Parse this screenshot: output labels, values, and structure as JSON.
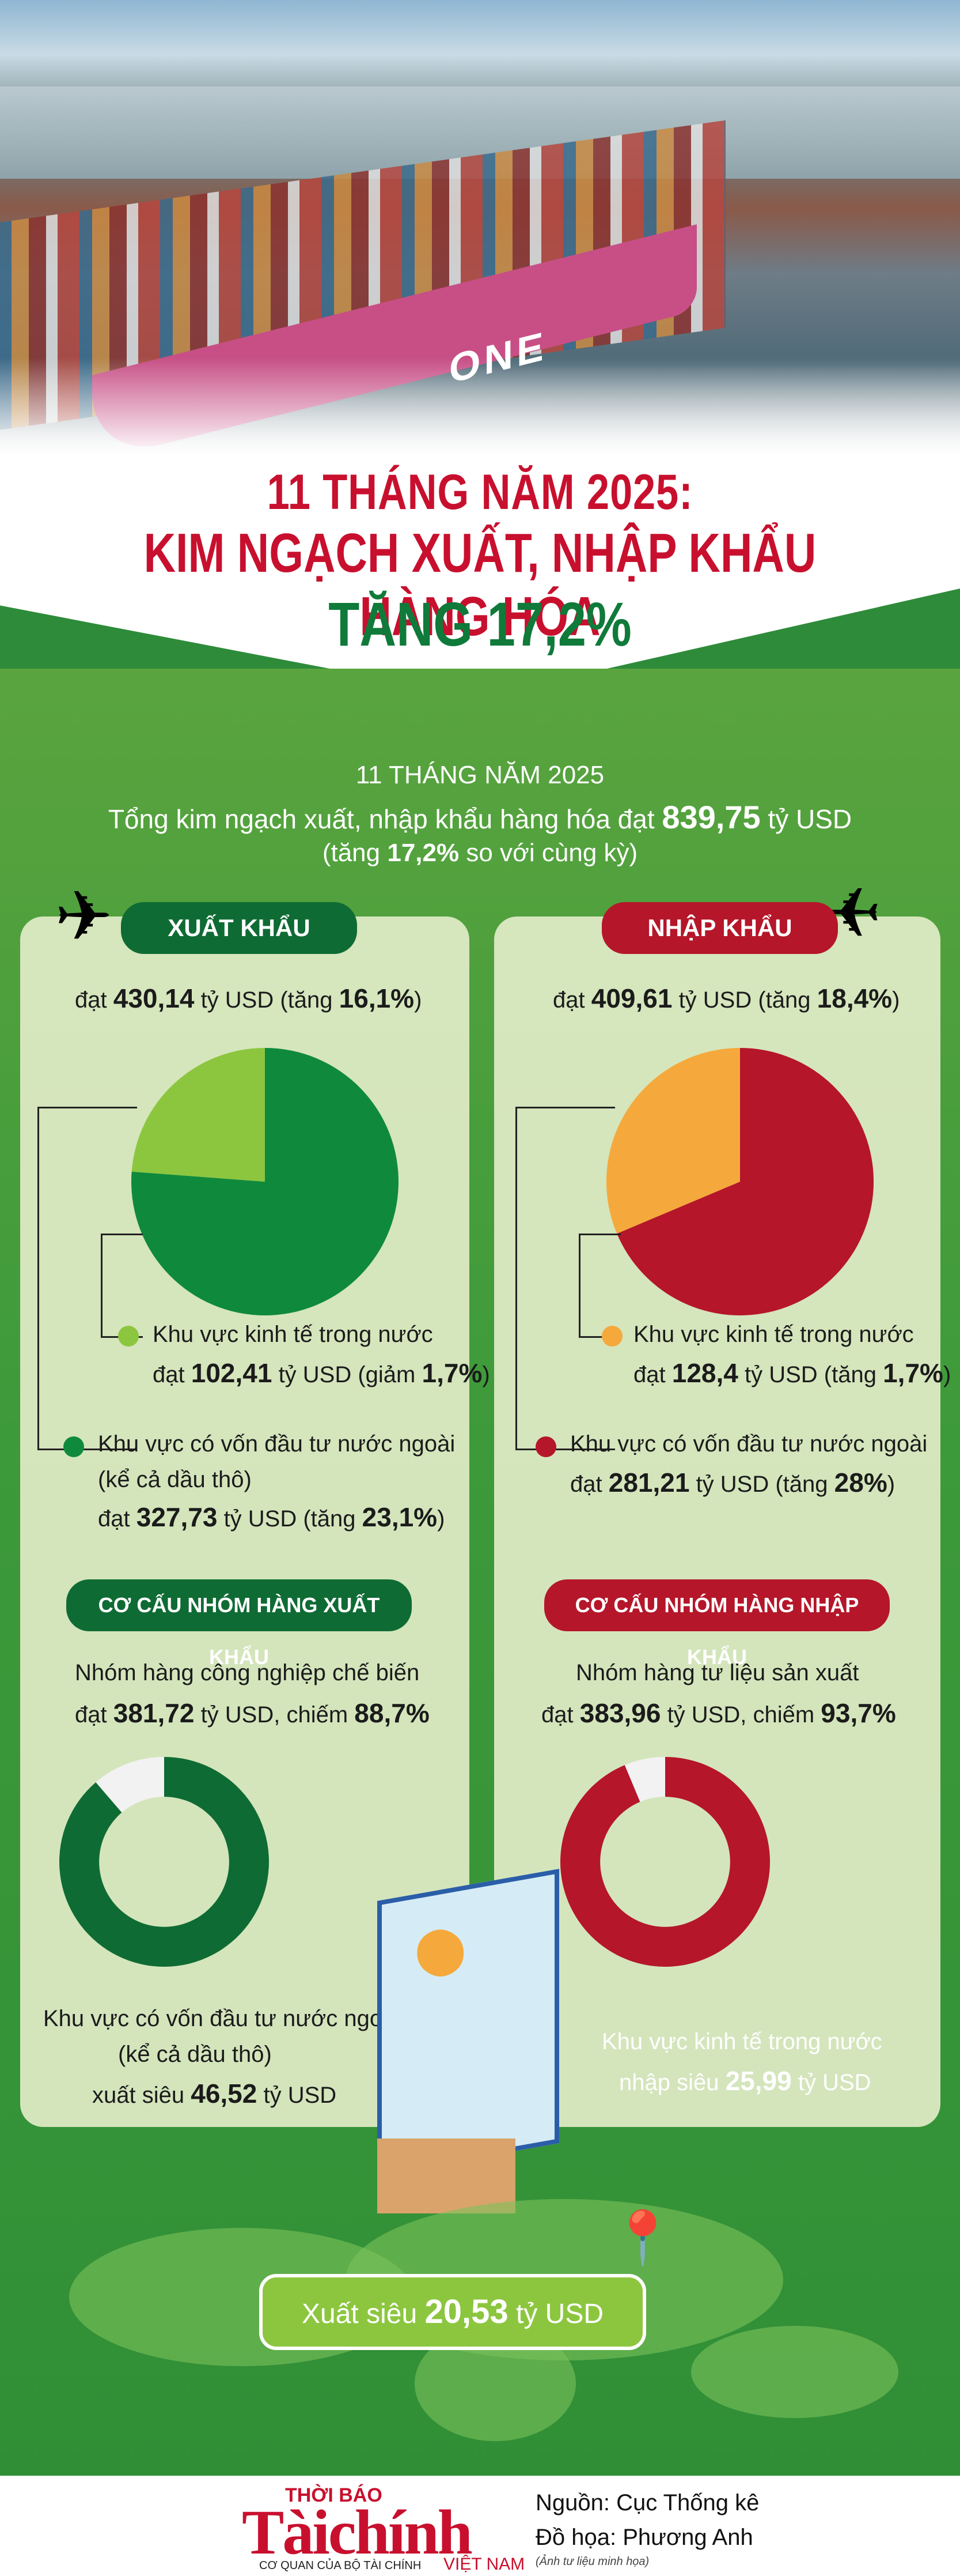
{
  "title": {
    "line1": "11 THÁNG NĂM 2025:",
    "line2": "KIM NGẠCH XUẤT, NHẬP KHẨU HÀNG HÓA",
    "line3": "TĂNG 17,2%"
  },
  "summary": {
    "period": "11 THÁNG NĂM 2025",
    "total_prefix": "Tổng kim ngạch xuất, nhập khẩu hàng hóa đạt",
    "total_value": "839,75",
    "total_unit": "tỷ USD",
    "growth_prefix": "(tăng",
    "growth_value": "17,2%",
    "growth_suffix": "so với cùng kỳ)"
  },
  "export": {
    "label": "XUẤT KHẨU",
    "value_prefix": "đạt",
    "value": "430,14",
    "value_mid": "tỷ USD (tăng",
    "growth": "16,1%",
    "value_suffix": ")",
    "domestic_label": "Khu vực kinh tế trong nước",
    "domestic_prefix": "đạt",
    "domestic_value": "102,41",
    "domestic_mid": "tỷ USD (giảm",
    "domestic_change": "1,7%",
    "domestic_suffix": ")",
    "fdi_label": "Khu vực có vốn đầu tư nước ngoài",
    "fdi_note": "(kể cả dầu thô)",
    "fdi_prefix": "đạt",
    "fdi_value": "327,73",
    "fdi_mid": "tỷ USD (tăng",
    "fdi_change": "23,1%",
    "fdi_suffix": ")",
    "structure_label": "CƠ CẤU NHÓM HÀNG XUẤT KHẨU",
    "group_label": "Nhóm hàng công nghiệp chế biến",
    "group_prefix": "đạt",
    "group_value": "381,72",
    "group_mid": "tỷ USD, chiếm",
    "group_share": "88,7%",
    "surplus_line1": "Khu vực có vốn đầu tư nước ngoài",
    "surplus_line2": "(kể cả dầu thô)",
    "surplus_prefix": "xuất siêu",
    "surplus_value": "46,52",
    "surplus_unit": "tỷ USD"
  },
  "import": {
    "label": "NHẬP KHẨU",
    "value_prefix": "đạt",
    "value": "409,61",
    "value_mid": "tỷ USD (tăng",
    "growth": "18,4%",
    "value_suffix": ")",
    "domestic_label": "Khu vực kinh tế trong nước",
    "domestic_prefix": "đạt",
    "domestic_value": "128,4",
    "domestic_mid": "tỷ USD (tăng",
    "domestic_change": "1,7%",
    "domestic_suffix": ")",
    "fdi_label": "Khu vực có vốn đầu tư nước ngoài",
    "fdi_prefix": "đạt",
    "fdi_value": "281,21",
    "fdi_mid": "tỷ USD (tăng",
    "fdi_change": "28%",
    "fdi_suffix": ")",
    "structure_label": "CƠ CẤU NHÓM HÀNG NHẬP KHẨU",
    "group_label": "Nhóm hàng tư liệu sản xuất",
    "group_prefix": "đạt",
    "group_value": "383,96",
    "group_mid": "tỷ USD, chiếm",
    "group_share": "93,7%",
    "deficit_line1": "Khu vực kinh tế trong nước",
    "deficit_prefix": "nhập siêu",
    "deficit_value": "25,99",
    "deficit_unit": "tỷ USD"
  },
  "balance": {
    "prefix": "Xuất siêu",
    "value": "20,53",
    "unit": "tỷ USD"
  },
  "footer": {
    "logo_top": "THỜI BÁO",
    "logo_main": "Tàichính",
    "logo_sub": "CƠ QUAN CỦA BỘ TÀI CHÍNH",
    "logo_country": "VIỆT NAM",
    "source": "Nguồn: Cục Thống kê",
    "graphics": "Đồ họa: Phương Anh",
    "note": "(Ảnh tư liệu minh họa)"
  },
  "chart_data": [
    {
      "type": "pie",
      "title": "",
      "categories": [
        "Khu vực có vốn đầu tư nước ngoài",
        "Khu vực kinh tế trong nước"
      ],
      "values": [
        327.73,
        102.41
      ],
      "colors": [
        "#0f8a3c",
        "#8cc63f"
      ]
    },
    {
      "type": "pie",
      "title": "",
      "categories": [
        "Khu vực có vốn đầu tư nước ngoài",
        "Khu vực kinh tế trong nước"
      ],
      "values": [
        281.21,
        128.4
      ],
      "colors": [
        "#b5162a",
        "#f5a93c"
      ]
    },
    {
      "type": "pie",
      "title": "",
      "categories": [
        "Nhóm hàng công nghiệp chế biến",
        "Khác"
      ],
      "values": [
        88.7,
        11.3
      ],
      "colors": [
        "#0f6b34",
        "#f2f2f2"
      ]
    },
    {
      "type": "pie",
      "title": "",
      "categories": [
        "Nhóm hàng tư liệu sản xuất",
        "Khác"
      ],
      "values": [
        93.7,
        6.3
      ],
      "colors": [
        "#b5162a",
        "#f2f2f2"
      ]
    }
  ],
  "colors": {
    "red": "#c8102e",
    "green": "#0f7a3a",
    "bg": "#3d9a3a"
  },
  "icons": [
    "airplane-icon",
    "location-pin-icon",
    "world-map"
  ]
}
